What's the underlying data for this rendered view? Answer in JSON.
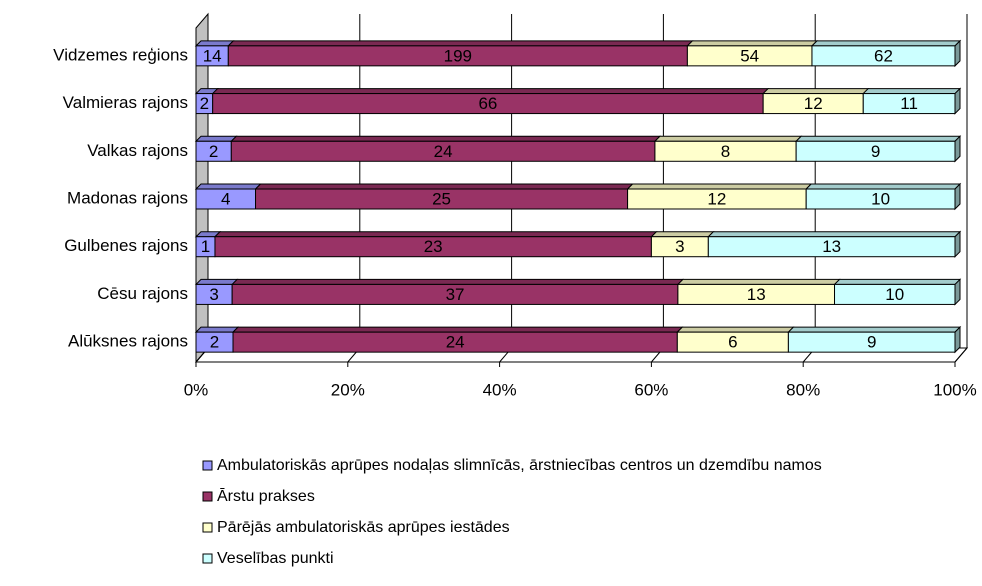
{
  "chart_data": {
    "type": "bar",
    "orientation": "horizontal",
    "stacked": "percent",
    "categories": [
      "Vidzemes reģions",
      "Valmieras rajons",
      "Valkas rajons",
      "Madonas rajons",
      "Gulbenes rajons",
      "Cēsu rajons",
      "Alūksnes rajons"
    ],
    "series": [
      {
        "name": "Ambulatoriskās aprūpes nodaļas slimnīcās, ārstniecības centros un dzemdību namos",
        "color": "#9999ff",
        "values": [
          14,
          2,
          2,
          4,
          1,
          3,
          2
        ]
      },
      {
        "name": "Ārstu prakses",
        "color": "#993366",
        "values": [
          199,
          66,
          24,
          25,
          23,
          37,
          24
        ]
      },
      {
        "name": "Pārējās ambulatoriskās aprūpes iestādes",
        "color": "#ffffcc",
        "values": [
          54,
          12,
          8,
          12,
          3,
          13,
          6
        ]
      },
      {
        "name": "Veselības punkti",
        "color": "#ccffff",
        "values": [
          62,
          11,
          9,
          10,
          13,
          10,
          9
        ]
      }
    ],
    "xlim": [
      0,
      100
    ],
    "xticks": [
      {
        "value": 0,
        "label": "0%"
      },
      {
        "value": 20,
        "label": "20%"
      },
      {
        "value": 40,
        "label": "40%"
      },
      {
        "value": 60,
        "label": "60%"
      },
      {
        "value": 80,
        "label": "80%"
      },
      {
        "value": 100,
        "label": "100%"
      }
    ],
    "grid": true,
    "legend": "bottom"
  }
}
